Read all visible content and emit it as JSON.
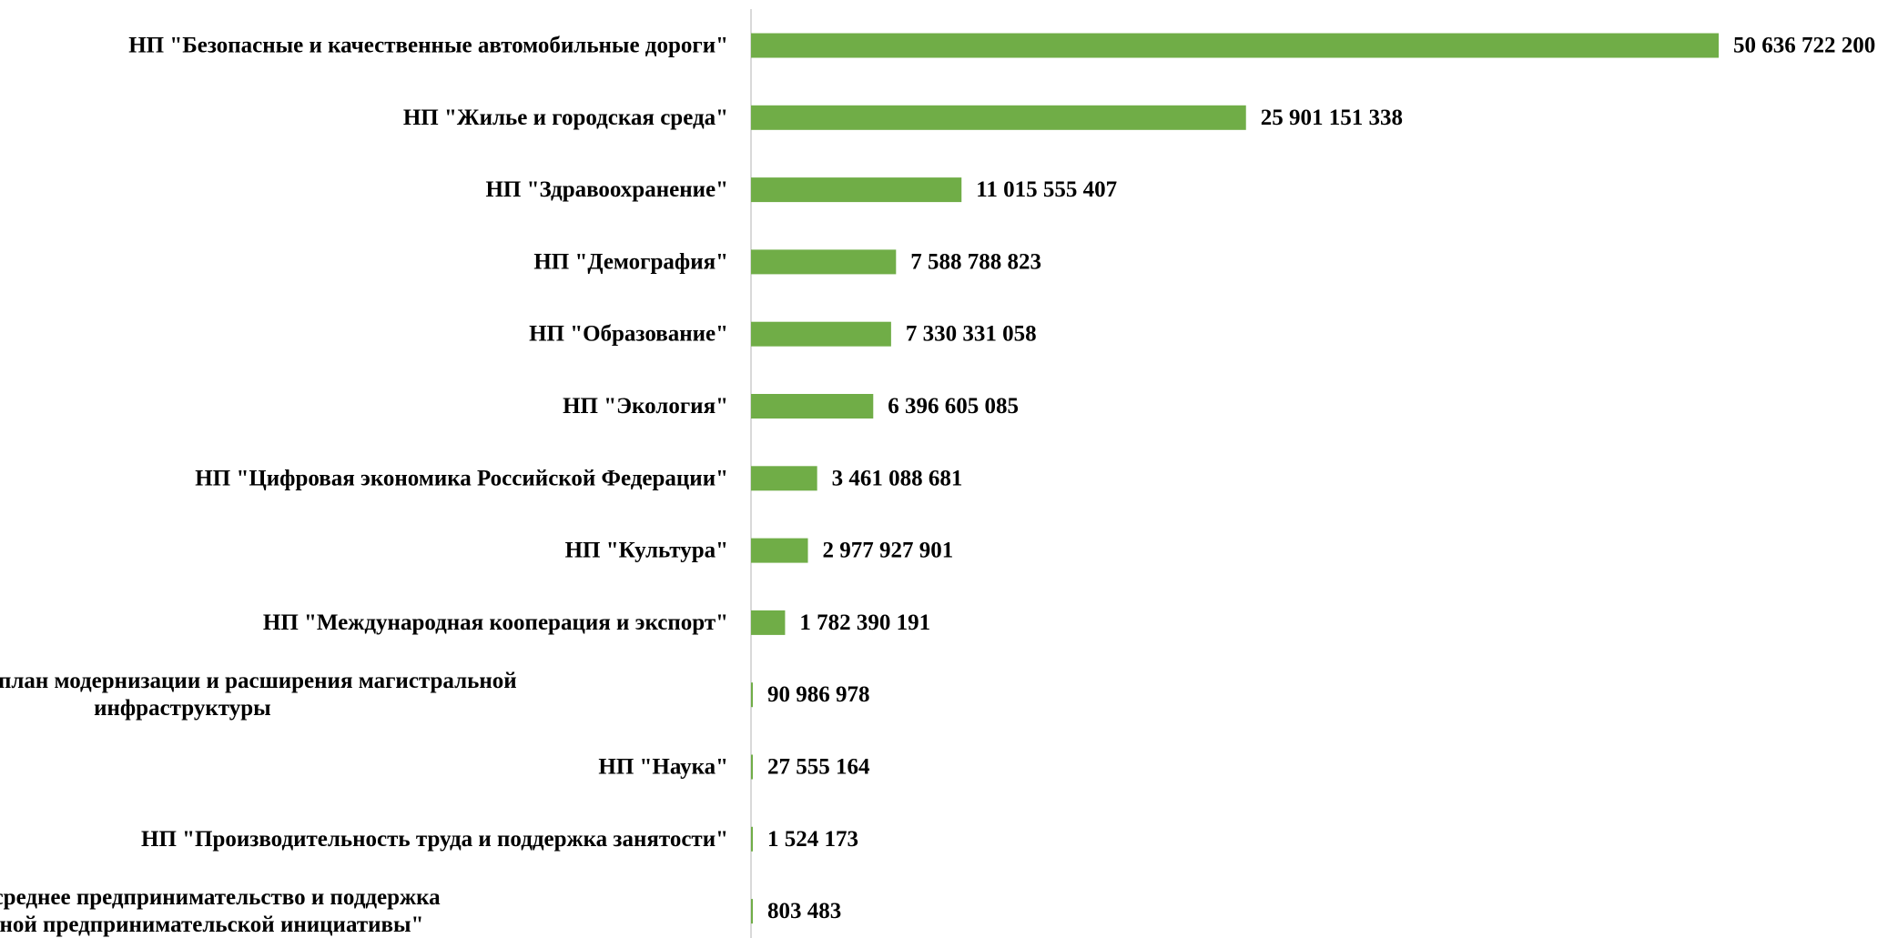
{
  "chart_data": {
    "type": "bar",
    "orientation": "horizontal",
    "categories": [
      [
        "НП \"Безопасные и качественные автомобильные дороги\""
      ],
      [
        "НП \"Жилье и городская среда\""
      ],
      [
        "НП \"Здравоохранение\""
      ],
      [
        "НП \"Демография\""
      ],
      [
        "НП \"Образование\""
      ],
      [
        "НП \"Экология\""
      ],
      [
        "НП \"Цифровая экономика Российской Федерации\""
      ],
      [
        "НП \"Культура\""
      ],
      [
        "НП \"Международная кооперация и экспорт\""
      ],
      [
        "Комплексный план модернизации и расширения магистральной",
        "инфраструктуры"
      ],
      [
        "НП \"Наука\""
      ],
      [
        "НП \"Производительность труда и поддержка занятости\""
      ],
      [
        "НП \"Малое и среднее предпринимательство и поддержка",
        "индивидуальной предпринимательской инициативы\""
      ]
    ],
    "values": [
      50636722200,
      25901151338,
      11015555407,
      7588788823,
      7330331058,
      6396605085,
      3461088681,
      2977927901,
      1782390191,
      90986978,
      27555164,
      1524173,
      803483
    ],
    "value_labels": [
      "50 636 722 200",
      "25 901 151 338",
      "11 015 555 407",
      "7 588 788 823",
      "7 330 331 058",
      "6 396 605 085",
      "3 461 088 681",
      "2 977 927 901",
      "1 782 390 191",
      "90 986 978",
      "27 555 164",
      "1 524 173",
      "803 483"
    ],
    "title": "",
    "xlabel": "",
    "ylabel": "",
    "grid": false,
    "legend": "none",
    "colors": {
      "bar": "#70AD47",
      "axis": "#D9D9D9",
      "text": "#000000"
    }
  }
}
